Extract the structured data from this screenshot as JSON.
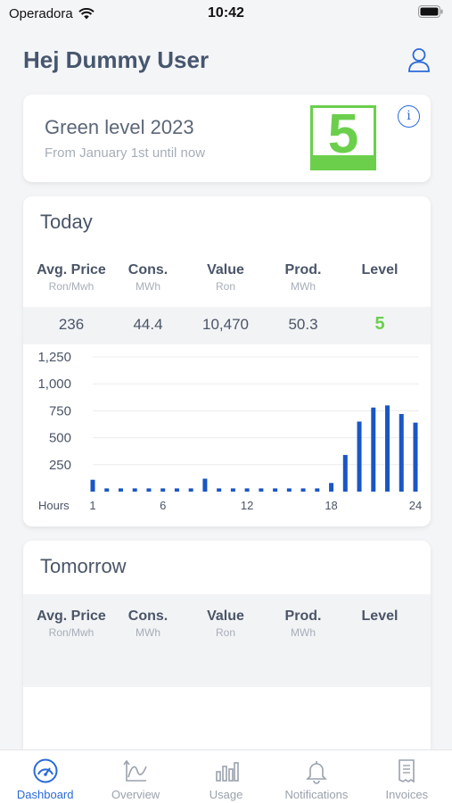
{
  "status": {
    "carrier": "Operadora",
    "time": "10:42"
  },
  "header": {
    "greeting": "Hej Dummy User"
  },
  "green_level": {
    "title": "Green level 2023",
    "subtitle": "From January 1st until now",
    "level": "5"
  },
  "columns": [
    {
      "label": "Avg. Price",
      "unit": "Ron/Mwh"
    },
    {
      "label": "Cons.",
      "unit": "MWh"
    },
    {
      "label": "Value",
      "unit": "Ron"
    },
    {
      "label": "Prod.",
      "unit": "MWh"
    },
    {
      "label": "Level",
      "unit": ""
    }
  ],
  "today": {
    "title": "Today",
    "values": {
      "avg_price": "236",
      "cons": "44.4",
      "value": "10,470",
      "prod": "50.3",
      "level": "5"
    }
  },
  "tomorrow": {
    "title": "Tomorrow"
  },
  "chart_data": {
    "type": "bar",
    "xlabel": "Hours",
    "ylabel": "",
    "x": [
      1,
      2,
      3,
      4,
      5,
      6,
      7,
      8,
      9,
      10,
      11,
      12,
      13,
      14,
      15,
      16,
      17,
      18,
      19,
      20,
      21,
      22,
      23,
      24
    ],
    "values": [
      110,
      30,
      30,
      30,
      30,
      30,
      30,
      30,
      120,
      30,
      30,
      30,
      30,
      30,
      30,
      30,
      30,
      80,
      340,
      650,
      780,
      800,
      720,
      640
    ],
    "ylim": [
      0,
      1250
    ],
    "yticks": [
      "250",
      "500",
      "750",
      "1,000",
      "1,250"
    ],
    "ytick_values": [
      250,
      500,
      750,
      1000,
      1250
    ],
    "xticks": [
      "1",
      "6",
      "12",
      "18",
      "24"
    ],
    "xtick_values": [
      1,
      6,
      12,
      18,
      24
    ],
    "grid": true,
    "color": "#1a56c4"
  },
  "tabs": [
    {
      "label": "Dashboard",
      "icon": "dashboard-icon",
      "active": true
    },
    {
      "label": "Overview",
      "icon": "overview-icon",
      "active": false
    },
    {
      "label": "Usage",
      "icon": "usage-icon",
      "active": false
    },
    {
      "label": "Notifications",
      "icon": "bell-icon",
      "active": false
    },
    {
      "label": "Invoices",
      "icon": "invoice-icon",
      "active": false
    }
  ],
  "colors": {
    "accent": "#2a6ad8",
    "green": "#6bcf4c",
    "bar": "#1a56c4"
  }
}
